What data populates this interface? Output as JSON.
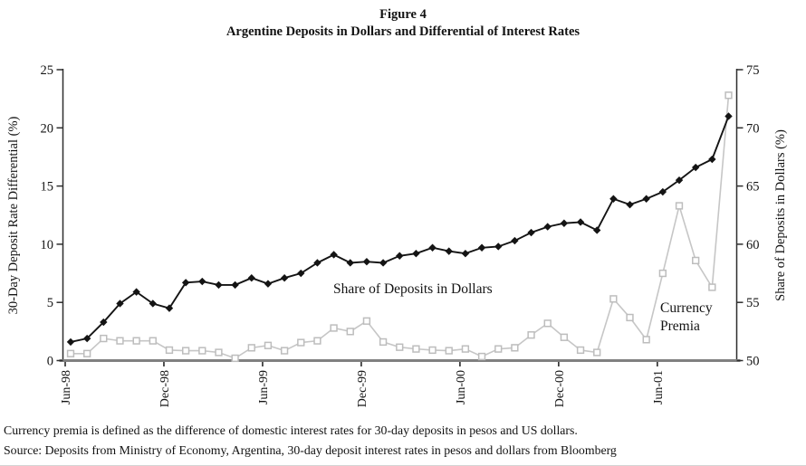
{
  "title": {
    "figure_label": "Figure 4",
    "main": "Argentine Deposits in Dollars and Differential of Interest Rates"
  },
  "chart_data": {
    "type": "line",
    "x": [
      "Jun-98",
      "Jul-98",
      "Aug-98",
      "Sep-98",
      "Oct-98",
      "Nov-98",
      "Dec-98",
      "Jan-99",
      "Feb-99",
      "Mar-99",
      "Apr-99",
      "May-99",
      "Jun-99",
      "Jul-99",
      "Aug-99",
      "Sep-99",
      "Oct-99",
      "Nov-99",
      "Dec-99",
      "Jan-00",
      "Feb-00",
      "Mar-00",
      "Apr-00",
      "May-00",
      "Jun-00",
      "Jul-00",
      "Aug-00",
      "Sep-00",
      "Oct-00",
      "Nov-00",
      "Dec-00",
      "Jan-01",
      "Feb-01",
      "Mar-01",
      "Apr-01",
      "May-01",
      "Jun-01",
      "Jul-01",
      "Aug-01",
      "Sep-01",
      "Oct-01"
    ],
    "x_ticks": [
      {
        "index": 0,
        "label": "Jun-98"
      },
      {
        "index": 6,
        "label": "Dec-98"
      },
      {
        "index": 12,
        "label": "Jun-99"
      },
      {
        "index": 18,
        "label": "Dec-99"
      },
      {
        "index": 24,
        "label": "Jun-00"
      },
      {
        "index": 30,
        "label": "Dec-00"
      },
      {
        "index": 36,
        "label": "Jun-01"
      }
    ],
    "left_axis": {
      "label": "30-Day Deposit Rate Differential (%)",
      "min": 0,
      "max": 25,
      "ticks": [
        0,
        5,
        10,
        15,
        20,
        25
      ]
    },
    "right_axis": {
      "label": "Share of Deposits in Dollars (%)",
      "min": 50,
      "max": 75,
      "ticks": [
        50,
        55,
        60,
        65,
        70,
        75
      ]
    },
    "series": [
      {
        "name": "Share of Deposits in Dollars",
        "axis": "right",
        "marker": "filled-diamond",
        "color": "#141414",
        "values": [
          51.6,
          51.9,
          53.3,
          54.9,
          55.9,
          54.9,
          54.5,
          56.7,
          56.8,
          56.5,
          56.5,
          57.1,
          56.6,
          57.1,
          57.5,
          58.4,
          59.1,
          58.4,
          58.5,
          58.4,
          59.0,
          59.2,
          59.7,
          59.4,
          59.2,
          59.7,
          59.8,
          60.3,
          61.0,
          61.5,
          61.8,
          61.9,
          61.2,
          63.9,
          63.4,
          63.9,
          64.5,
          65.5,
          66.6,
          67.3,
          71.0
        ]
      },
      {
        "name": "Currency Premia",
        "axis": "left",
        "marker": "open-square",
        "color": "#c6c6c6",
        "values": [
          0.6,
          0.6,
          1.9,
          1.7,
          1.7,
          1.7,
          0.9,
          0.85,
          0.85,
          0.7,
          0.2,
          1.1,
          1.3,
          0.85,
          1.55,
          1.7,
          2.8,
          2.5,
          3.4,
          1.6,
          1.15,
          1.0,
          0.9,
          0.85,
          1.0,
          0.35,
          1.0,
          1.1,
          2.2,
          3.2,
          2.0,
          0.9,
          0.7,
          5.3,
          3.7,
          1.8,
          7.5,
          13.3,
          8.6,
          6.3,
          22.8
        ]
      }
    ],
    "annotations": [
      {
        "text": "Share of Deposits in Dollars",
        "x": 368,
        "y": 324,
        "wrap": false
      },
      {
        "text": "Currency Premia",
        "x": 729,
        "y": 345,
        "wrap": true
      }
    ],
    "grid": false,
    "legend_position": "none"
  },
  "footnotes": {
    "line1": "Currency premia is defined as the difference of domestic interest rates for 30-day deposits in pesos and US dollars.",
    "line2": "Source: Deposits from Ministry of Economy, Argentina, 30-day deposit interest rates in pesos and dollars from Bloomberg"
  },
  "colors": {
    "share_series": "#141414",
    "premia_series": "#c6c6c6",
    "premia_marker_stroke": "#bdbdbd",
    "axis_line": "#2e2e2e",
    "baseline": "#808080",
    "text": "#121212"
  }
}
